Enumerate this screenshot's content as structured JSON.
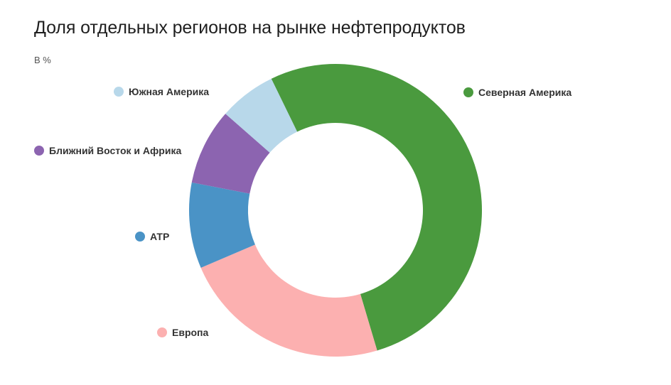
{
  "title": "Доля отдельных регионов на рынке нефтепродуктов",
  "subtitle": "В %",
  "chart_data": {
    "type": "pie",
    "title": "Доля отдельных регионов на рынке нефтепродуктов",
    "unit": "В %",
    "donut": true,
    "legend_placement": "labels beside chart",
    "categories": [
      "Северная Америка",
      "Европа",
      "АТР",
      "Ближний Восток и Африка",
      "Южная Америка"
    ],
    "values": [
      50,
      22,
      9,
      8,
      6
    ],
    "colors": [
      "#4a9a3e",
      "#fcb0b0",
      "#4a93c6",
      "#8c64b0",
      "#b8d8ea"
    ]
  }
}
